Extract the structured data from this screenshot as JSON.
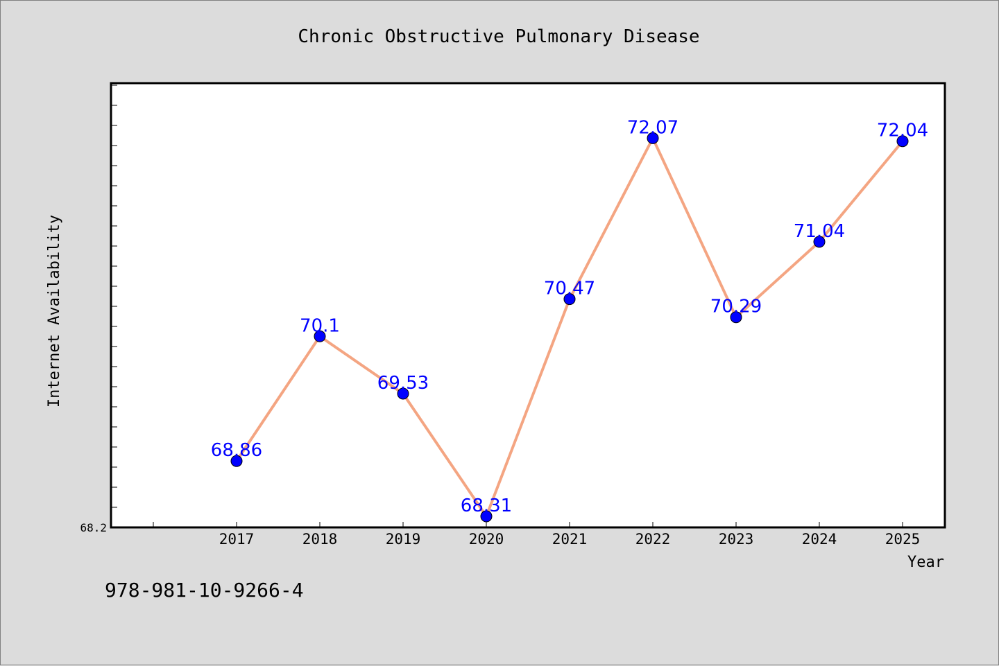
{
  "chart_data": {
    "type": "line",
    "title": "Chronic Obstructive Pulmonary Disease",
    "xlabel": "Year",
    "ylabel": "Internet Availability",
    "categories": [
      "2017",
      "2018",
      "2019",
      "2020",
      "2021",
      "2022",
      "2023",
      "2024",
      "2025"
    ],
    "series": [
      {
        "values": [
          68.86,
          70.1,
          69.53,
          68.31,
          70.47,
          72.07,
          70.29,
          71.04,
          72.04
        ],
        "labels": [
          "68.86",
          "70.1",
          "69.53",
          "68.31",
          "70.47",
          "72.07",
          "70.29",
          "71.04",
          "72.04"
        ],
        "line_color": "#f4a582",
        "marker_color": "#0000ff"
      }
    ],
    "ylim": [
      68.2,
      72.61
    ],
    "y_min_label": "68.2",
    "grid": false,
    "data_labels_color": "#0000ff"
  },
  "footer": {
    "isbn": "978-981-10-9266-4"
  }
}
